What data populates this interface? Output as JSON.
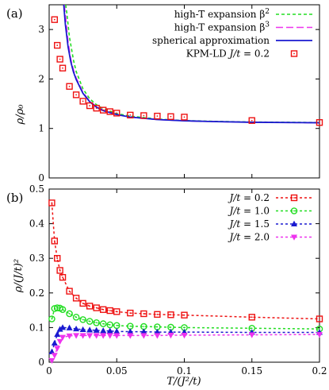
{
  "chart_data": [
    {
      "panel_label": "(a)",
      "type": "scatter",
      "ylabel": "ρ/ρ₀",
      "xlim": [
        0,
        0.2
      ],
      "ylim": [
        0,
        3.5
      ],
      "yticks": [
        "0",
        "1",
        "2",
        "3"
      ],
      "xticks": [
        "0",
        "0.05",
        "0.1",
        "0.15",
        "0.2"
      ],
      "legend_position": "top-right",
      "colors": {
        "green": "#22dd22",
        "magenta": "#ee33ee",
        "blue": "#1a1ad0",
        "red": "#ee1111"
      },
      "curves": [
        {
          "name": "high-T expansion β²",
          "legend_text": "high-T expansion β",
          "legend_sup": "2",
          "style": "dashed",
          "color": "green",
          "x": [
            0.0122,
            0.013,
            0.015,
            0.018,
            0.02,
            0.025,
            0.03,
            0.035,
            0.04,
            0.05,
            0.06,
            0.08,
            0.1,
            0.12,
            0.15,
            0.2
          ],
          "y": [
            3.5,
            3.35,
            2.85,
            2.38,
            2.15,
            1.8,
            1.6,
            1.48,
            1.4,
            1.3,
            1.25,
            1.19,
            1.16,
            1.145,
            1.13,
            1.12
          ]
        },
        {
          "name": "high-T expansion β³",
          "legend_text": "high-T expansion β",
          "legend_sup": "3",
          "style": "dashed",
          "color": "magenta",
          "x": [
            0.0112,
            0.012,
            0.014,
            0.016,
            0.018,
            0.02,
            0.025,
            0.03,
            0.035,
            0.04,
            0.05,
            0.06,
            0.08,
            0.1,
            0.12,
            0.15,
            0.2
          ],
          "y": [
            3.5,
            3.3,
            2.75,
            2.4,
            2.18,
            2.02,
            1.73,
            1.55,
            1.44,
            1.37,
            1.28,
            1.23,
            1.18,
            1.155,
            1.14,
            1.125,
            1.115
          ]
        },
        {
          "name": "spherical approximation",
          "legend_text": "spherical approximation",
          "style": "solid",
          "color": "blue",
          "x": [
            0.0108,
            0.012,
            0.014,
            0.016,
            0.018,
            0.02,
            0.025,
            0.03,
            0.035,
            0.04,
            0.05,
            0.06,
            0.08,
            0.1,
            0.12,
            0.15,
            0.2
          ],
          "y": [
            3.5,
            3.1,
            2.65,
            2.35,
            2.14,
            1.99,
            1.71,
            1.54,
            1.43,
            1.36,
            1.28,
            1.23,
            1.18,
            1.155,
            1.14,
            1.125,
            1.115
          ]
        }
      ],
      "points": [
        {
          "name": "KPM-LD J/t = 0.2",
          "legend_text": "KPM-LD J/t = 0.2",
          "marker": "square-dot",
          "color": "red",
          "x": [
            0.004,
            0.006,
            0.008,
            0.01,
            0.015,
            0.02,
            0.025,
            0.03,
            0.035,
            0.04,
            0.045,
            0.05,
            0.06,
            0.07,
            0.08,
            0.09,
            0.1,
            0.15,
            0.2
          ],
          "y": [
            3.2,
            2.68,
            2.4,
            2.22,
            1.85,
            1.68,
            1.55,
            1.46,
            1.41,
            1.37,
            1.34,
            1.31,
            1.27,
            1.26,
            1.25,
            1.24,
            1.23,
            1.16,
            1.12
          ]
        }
      ]
    },
    {
      "panel_label": "(b)",
      "type": "line",
      "ylabel": "ρ/(J/t)²",
      "xlabel": "T/(J²/t)",
      "xlim": [
        0,
        0.2
      ],
      "ylim": [
        0,
        0.5
      ],
      "yticks": [
        "0",
        "0.1",
        "0.2",
        "0.3",
        "0.4",
        "0.5"
      ],
      "xticks": [
        "0",
        "0.05",
        "0.1",
        "0.15",
        "0.2"
      ],
      "legend_position": "top-right",
      "colors": {
        "red": "#ee1111",
        "green": "#22dd22",
        "blue": "#1a1ad0",
        "magenta": "#ee33ee"
      },
      "series": [
        {
          "name": "J/t = 0.2",
          "legend_text": "J/t = 0.2",
          "marker": "square-dot",
          "color": "red",
          "x": [
            0.002,
            0.004,
            0.006,
            0.008,
            0.01,
            0.015,
            0.02,
            0.025,
            0.03,
            0.035,
            0.04,
            0.045,
            0.05,
            0.06,
            0.07,
            0.08,
            0.09,
            0.1,
            0.15,
            0.2
          ],
          "y": [
            0.46,
            0.35,
            0.3,
            0.265,
            0.245,
            0.205,
            0.185,
            0.17,
            0.162,
            0.157,
            0.152,
            0.149,
            0.146,
            0.142,
            0.14,
            0.138,
            0.137,
            0.136,
            0.13,
            0.125
          ]
        },
        {
          "name": "J/t = 1.0",
          "legend_text": "J/t = 1.0",
          "marker": "circle-dot",
          "color": "green",
          "x": [
            0.002,
            0.004,
            0.006,
            0.008,
            0.01,
            0.015,
            0.02,
            0.025,
            0.03,
            0.035,
            0.04,
            0.045,
            0.05,
            0.06,
            0.07,
            0.08,
            0.09,
            0.1,
            0.15,
            0.2
          ],
          "y": [
            0.125,
            0.155,
            0.157,
            0.156,
            0.152,
            0.14,
            0.13,
            0.123,
            0.118,
            0.114,
            0.111,
            0.108,
            0.106,
            0.104,
            0.103,
            0.102,
            0.101,
            0.1,
            0.098,
            0.096
          ]
        },
        {
          "name": "J/t = 1.5",
          "legend_text": "J/t = 1.5",
          "marker": "triangle-up",
          "color": "blue",
          "x": [
            0.002,
            0.004,
            0.006,
            0.008,
            0.01,
            0.015,
            0.02,
            0.025,
            0.03,
            0.035,
            0.04,
            0.045,
            0.05,
            0.06,
            0.07,
            0.08,
            0.09,
            0.1,
            0.15,
            0.2
          ],
          "y": [
            0.03,
            0.055,
            0.08,
            0.095,
            0.1,
            0.099,
            0.096,
            0.094,
            0.093,
            0.092,
            0.091,
            0.09,
            0.089,
            0.088,
            0.088,
            0.087,
            0.087,
            0.087,
            0.086,
            0.086
          ]
        },
        {
          "name": "J/t = 2.0",
          "legend_text": "J/t = 2.0",
          "marker": "triangle-down",
          "color": "magenta",
          "x": [
            0.002,
            0.004,
            0.006,
            0.008,
            0.01,
            0.015,
            0.02,
            0.025,
            0.03,
            0.035,
            0.04,
            0.045,
            0.05,
            0.06,
            0.07,
            0.08,
            0.09,
            0.1,
            0.15,
            0.2
          ],
          "y": [
            0.005,
            0.02,
            0.04,
            0.06,
            0.072,
            0.076,
            0.077,
            0.077,
            0.077,
            0.077,
            0.077,
            0.077,
            0.077,
            0.077,
            0.077,
            0.077,
            0.078,
            0.078,
            0.079,
            0.08
          ]
        }
      ]
    }
  ]
}
